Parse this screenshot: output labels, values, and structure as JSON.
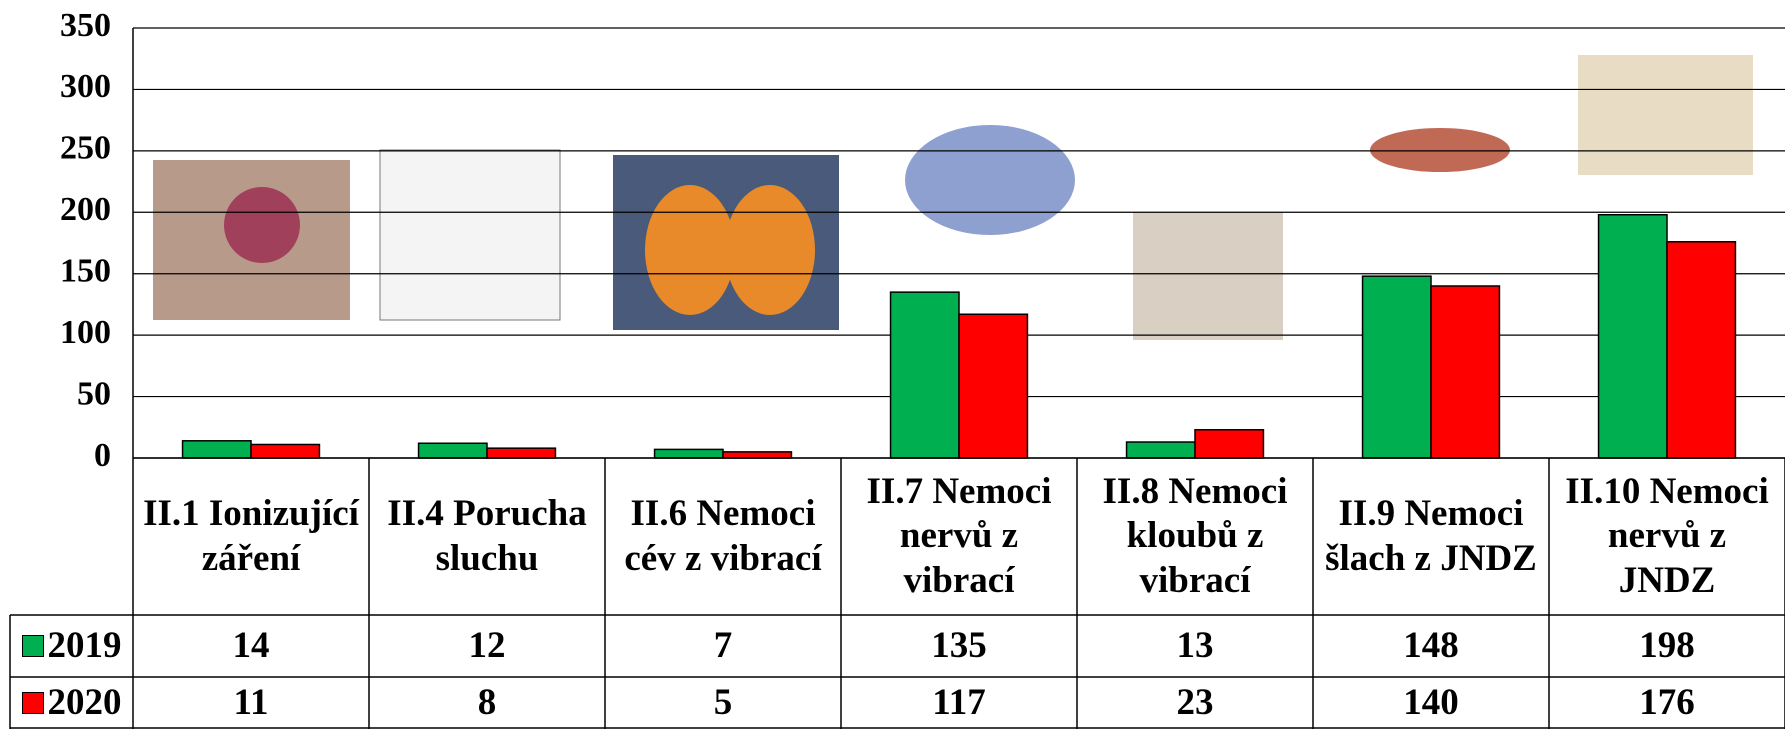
{
  "chart_data": {
    "type": "bar",
    "categories": [
      "II.1 Ionizující záření",
      "II.4 Porucha sluchu",
      "II.6 Nemoci cév z vibrací",
      "II.7 Nemoci nervů z vibrací",
      "II.8 Nemoci kloubů z vibrací",
      "II.9 Nemoci šlach z JNDZ",
      "II.10 Nemoci nervů z JNDZ"
    ],
    "series": [
      {
        "name": "2019",
        "color": "#00b050",
        "values": [
          14,
          12,
          7,
          135,
          13,
          148,
          198
        ]
      },
      {
        "name": "2020",
        "color": "#ff0000",
        "values": [
          11,
          8,
          5,
          117,
          23,
          140,
          176
        ]
      }
    ],
    "ylim": [
      0,
      350
    ],
    "yticks": [
      0,
      50,
      100,
      150,
      200,
      250,
      300,
      350
    ],
    "grid": true
  }
}
